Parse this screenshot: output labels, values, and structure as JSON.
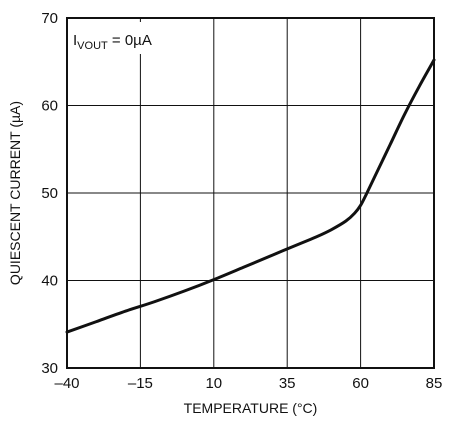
{
  "chart_data": {
    "type": "line",
    "xlabel": "TEMPERATURE (°C)",
    "ylabel": "QUIESCENT CURRENT (µA)",
    "xlim": [
      -40,
      85
    ],
    "ylim": [
      30,
      70
    ],
    "x_ticks": [
      -40,
      -15,
      10,
      35,
      60,
      85
    ],
    "y_ticks": [
      30,
      40,
      50,
      60,
      70
    ],
    "x_tick_labels": [
      "–40",
      "–15",
      "10",
      "35",
      "60",
      "85"
    ],
    "y_tick_labels": [
      "30",
      "40",
      "50",
      "60",
      "70"
    ],
    "grid": true,
    "annotation": {
      "main": "I",
      "subscript": "VOUT",
      "suffix": " = 0µA"
    },
    "series": [
      {
        "color": "#111111",
        "x": [
          -40,
          -30,
          -20,
          -10,
          0,
          10,
          20,
          30,
          40,
          45,
          50,
          55,
          58,
          60,
          62,
          65,
          70,
          75,
          80,
          85
        ],
        "y": [
          34.1,
          35.3,
          36.5,
          37.6,
          38.8,
          40.1,
          41.5,
          42.9,
          44.3,
          45.0,
          45.8,
          46.8,
          47.7,
          48.6,
          49.9,
          52.0,
          55.5,
          59.0,
          62.2,
          65.2
        ]
      }
    ]
  }
}
